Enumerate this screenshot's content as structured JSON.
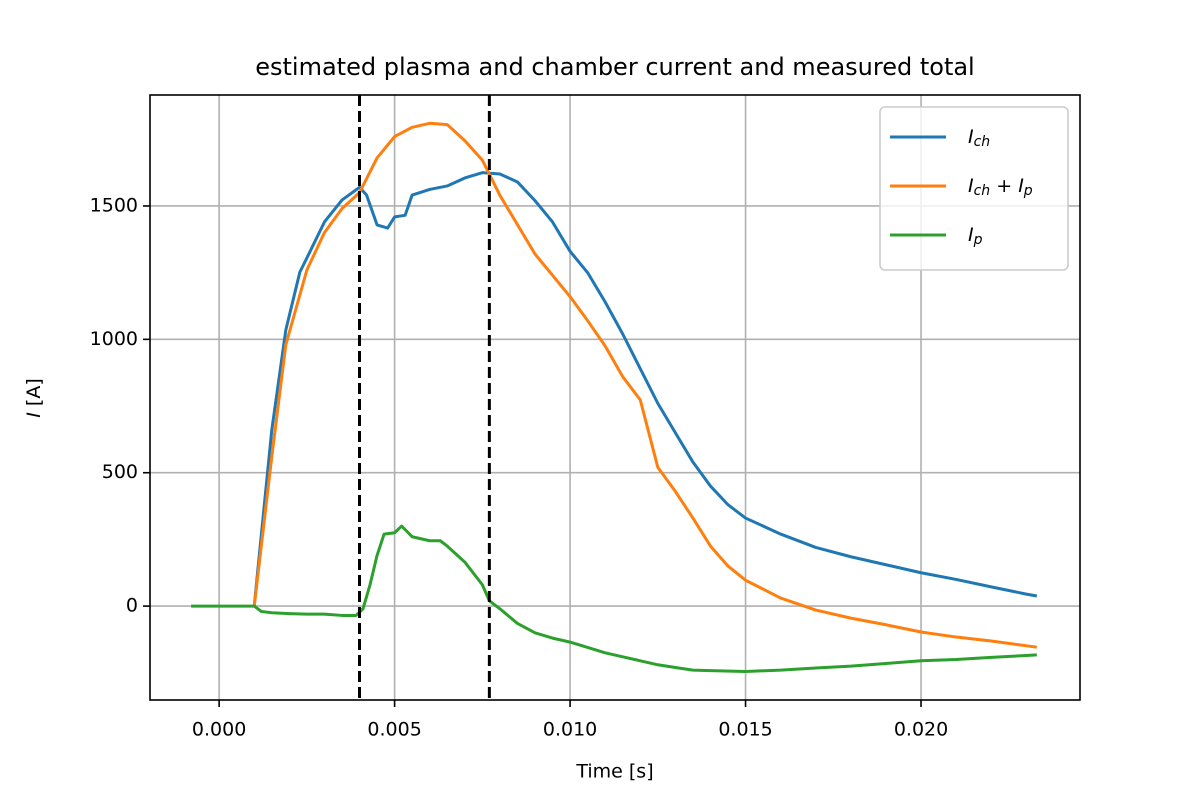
{
  "chart_data": {
    "type": "line",
    "title": "estimated plasma and chamber current and measured total",
    "x_label": "Time [s]",
    "y_label": "I [A]",
    "xlim": [
      -0.00197,
      0.02453
    ],
    "ylim": [
      -352,
      1916
    ],
    "xticks": [
      {
        "value": 0,
        "label": "0.000"
      },
      {
        "value": 0.005,
        "label": "0.005"
      },
      {
        "value": 0.01,
        "label": "0.010"
      },
      {
        "value": 0.015,
        "label": "0.015"
      },
      {
        "value": 0.02,
        "label": "0.020"
      }
    ],
    "yticks": [
      0,
      500,
      1000,
      1500
    ],
    "grid": true,
    "legend": "upper right",
    "vlines": [
      0.004,
      0.0077
    ],
    "vline_color": "#000000",
    "series": [
      {
        "name": "Ich",
        "color": "#1f77b4",
        "x": [
          0.001,
          0.0015,
          0.0019,
          0.0023,
          0.0025,
          0.003,
          0.0035,
          0.004,
          0.0042,
          0.0045,
          0.0048,
          0.005,
          0.0053,
          0.0055,
          0.006,
          0.0065,
          0.007,
          0.0075,
          0.008,
          0.0085,
          0.009,
          0.0095,
          0.01,
          0.0105,
          0.011,
          0.0115,
          0.012,
          0.0125,
          0.013,
          0.0135,
          0.014,
          0.0145,
          0.015,
          0.016,
          0.017,
          0.018,
          0.019,
          0.02,
          0.021,
          0.022,
          0.023,
          0.0233
        ],
        "values": [
          0,
          660,
          1035,
          1252,
          1305,
          1440,
          1522,
          1570,
          1541,
          1429,
          1417,
          1459,
          1465,
          1541,
          1562,
          1575,
          1605,
          1625,
          1620,
          1590,
          1520,
          1440,
          1330,
          1250,
          1140,
          1020,
          890,
          760,
          650,
          540,
          450,
          380,
          330,
          270,
          220,
          185,
          155,
          125,
          100,
          72,
          45,
          38
        ]
      },
      {
        "name": "Ich + Ip",
        "color": "#ff7f0e",
        "x": [
          0.001,
          0.0015,
          0.0019,
          0.0025,
          0.003,
          0.0035,
          0.004,
          0.0045,
          0.005,
          0.0055,
          0.006,
          0.0065,
          0.007,
          0.0075,
          0.008,
          0.0085,
          0.009,
          0.0095,
          0.01,
          0.0105,
          0.011,
          0.0115,
          0.012,
          0.0125,
          0.013,
          0.0135,
          0.014,
          0.0145,
          0.015,
          0.016,
          0.017,
          0.018,
          0.019,
          0.02,
          0.021,
          0.022,
          0.0233
        ],
        "values": [
          0,
          560,
          980,
          1260,
          1400,
          1490,
          1550,
          1680,
          1760,
          1795,
          1810,
          1805,
          1745,
          1672,
          1540,
          1430,
          1320,
          1240,
          1160,
          1070,
          975,
          860,
          773,
          520,
          430,
          330,
          225,
          150,
          97,
          30,
          -15,
          -45,
          -70,
          -97,
          -116,
          -131,
          -154
        ]
      },
      {
        "name": "Ip",
        "color": "#2ca02c",
        "x": [
          -0.0008,
          0,
          0.001,
          0.0012,
          0.0015,
          0.002,
          0.0025,
          0.003,
          0.0035,
          0.0039,
          0.0041,
          0.0043,
          0.0045,
          0.0047,
          0.005,
          0.0052,
          0.0055,
          0.006,
          0.0063,
          0.0065,
          0.007,
          0.0075,
          0.0077,
          0.008,
          0.0085,
          0.009,
          0.0095,
          0.01,
          0.0105,
          0.011,
          0.0115,
          0.012,
          0.0125,
          0.013,
          0.0135,
          0.014,
          0.015,
          0.016,
          0.017,
          0.018,
          0.019,
          0.02,
          0.021,
          0.022,
          0.023,
          0.0233
        ],
        "values": [
          0,
          0,
          0,
          -20,
          -25,
          -28,
          -30,
          -30,
          -35,
          -35,
          -10,
          80,
          190,
          270,
          275,
          300,
          260,
          245,
          245,
          225,
          165,
          80,
          20,
          -10,
          -65,
          -100,
          -120,
          -135,
          -155,
          -175,
          -190,
          -205,
          -220,
          -230,
          -240,
          -242,
          -245,
          -240,
          -232,
          -225,
          -215,
          -205,
          -200,
          -192,
          -185,
          -183
        ]
      }
    ]
  }
}
